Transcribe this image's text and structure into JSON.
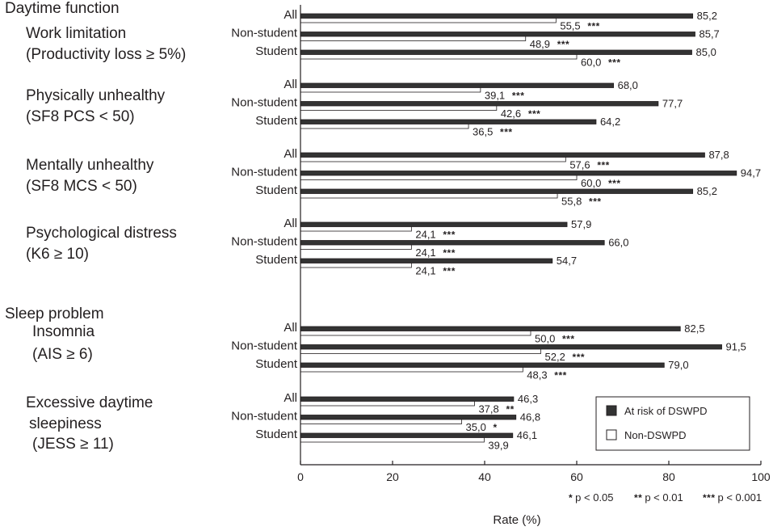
{
  "chart_data": {
    "type": "bar",
    "orientation": "horizontal",
    "xlabel": "Rate (%)",
    "xlim": [
      0,
      100
    ],
    "xticks": [
      "0",
      "20",
      "40",
      "60",
      "80",
      "100"
    ],
    "legend": {
      "position": "bottom-right",
      "entries": [
        {
          "label": "At risk of DSWPD",
          "color": "#333333"
        },
        {
          "label": "Non-DSWPD",
          "color": "#ffffff"
        }
      ]
    },
    "significance_notes": [
      {
        "stars": "*",
        "text": "p < 0.05"
      },
      {
        "stars": "**",
        "text": "p < 0.01"
      },
      {
        "stars": "***",
        "text": "p < 0.001"
      }
    ],
    "sections": [
      {
        "title": "Daytime function",
        "groups": [
          {
            "title_lines": [
              "Work limitation",
              "(Productivity loss ≥ 5%)"
            ],
            "rows": [
              {
                "label": "All",
                "at_risk": 85.2,
                "at_risk_label": "85,2",
                "non": 55.5,
                "non_label": "55,5",
                "sig": "***"
              },
              {
                "label": "Non-student",
                "at_risk": 85.7,
                "at_risk_label": "85,7",
                "non": 48.9,
                "non_label": "48,9",
                "sig": "***"
              },
              {
                "label": "Student",
                "at_risk": 85.0,
                "at_risk_label": "85,0",
                "non": 60.0,
                "non_label": "60,0",
                "sig": "***"
              }
            ]
          },
          {
            "title_lines": [
              "Physically unhealthy",
              "(SF8 PCS < 50)"
            ],
            "rows": [
              {
                "label": "All",
                "at_risk": 68.0,
                "at_risk_label": "68,0",
                "non": 39.1,
                "non_label": "39,1",
                "sig": "***"
              },
              {
                "label": "Non-student",
                "at_risk": 77.7,
                "at_risk_label": "77,7",
                "non": 42.6,
                "non_label": "42,6",
                "sig": "***"
              },
              {
                "label": "Student",
                "at_risk": 64.2,
                "at_risk_label": "64,2",
                "non": 36.5,
                "non_label": "36,5",
                "sig": "***"
              }
            ]
          },
          {
            "title_lines": [
              "Mentally unhealthy",
              "(SF8 MCS < 50)"
            ],
            "rows": [
              {
                "label": "All",
                "at_risk": 87.8,
                "at_risk_label": "87,8",
                "non": 57.6,
                "non_label": "57,6",
                "sig": "***"
              },
              {
                "label": "Non-student",
                "at_risk": 94.7,
                "at_risk_label": "94,7",
                "non": 60.0,
                "non_label": "60,0",
                "sig": "***"
              },
              {
                "label": "Student",
                "at_risk": 85.2,
                "at_risk_label": "85,2",
                "non": 55.8,
                "non_label": "55,8",
                "sig": "***"
              }
            ]
          },
          {
            "title_lines": [
              "Psychological distress",
              "(K6 ≥ 10)"
            ],
            "rows": [
              {
                "label": "All",
                "at_risk": 57.9,
                "at_risk_label": "57,9",
                "non": 24.1,
                "non_label": "24,1",
                "sig": "***"
              },
              {
                "label": "Non-student",
                "at_risk": 66.0,
                "at_risk_label": "66,0",
                "non": 24.1,
                "non_label": "24,1",
                "sig": "***"
              },
              {
                "label": "Student",
                "at_risk": 54.7,
                "at_risk_label": "54,7",
                "non": 24.1,
                "non_label": "24,1",
                "sig": "***"
              }
            ]
          }
        ]
      },
      {
        "title": "Sleep problem",
        "groups": [
          {
            "title_lines": [
              "Insomnia",
              "(AIS ≥ 6)"
            ],
            "rows": [
              {
                "label": "All",
                "at_risk": 82.5,
                "at_risk_label": "82,5",
                "non": 50.0,
                "non_label": "50,0",
                "sig": "***"
              },
              {
                "label": "Non-student",
                "at_risk": 91.5,
                "at_risk_label": "91,5",
                "non": 52.2,
                "non_label": "52,2",
                "sig": "***"
              },
              {
                "label": "Student",
                "at_risk": 79.0,
                "at_risk_label": "79,0",
                "non": 48.3,
                "non_label": "48,3",
                "sig": "***"
              }
            ]
          },
          {
            "title_lines": [
              "Excessive daytime",
              "sleepiness",
              "(JESS ≥ 11)"
            ],
            "rows": [
              {
                "label": "All",
                "at_risk": 46.3,
                "at_risk_label": "46,3",
                "non": 37.8,
                "non_label": "37,8",
                "sig": "**"
              },
              {
                "label": "Non-student",
                "at_risk": 46.8,
                "at_risk_label": "46,8",
                "non": 35.0,
                "non_label": "35,0",
                "sig": "*"
              },
              {
                "label": "Student",
                "at_risk": 46.1,
                "at_risk_label": "46,1",
                "non": 39.9,
                "non_label": "39,9",
                "sig": ""
              }
            ]
          }
        ]
      }
    ]
  }
}
